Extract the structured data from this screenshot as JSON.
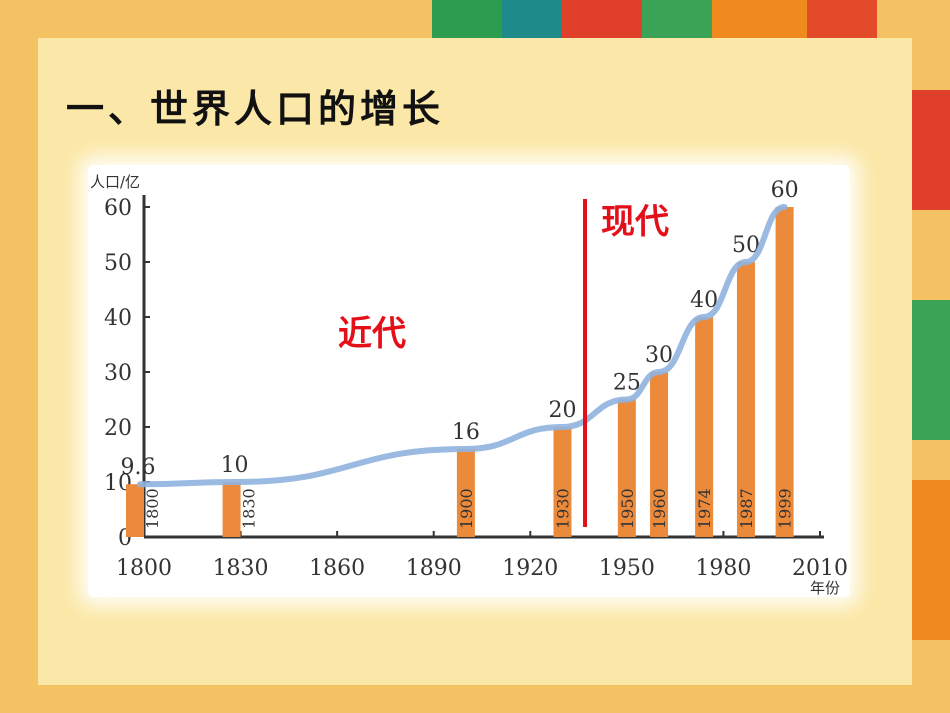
{
  "slide": {
    "title": "一、世界人口的增长"
  },
  "colors": {
    "bar": "#ec8a3c",
    "curve": "#8fb3df",
    "era_divider": "#e3101a",
    "era_text": "#e3101a"
  },
  "chart_data": {
    "type": "bar",
    "ylabel": "人口/亿",
    "xlabel": "年份",
    "xlim": [
      1800,
      2010
    ],
    "ylim": [
      0,
      60
    ],
    "x_ticks": [
      1800,
      1830,
      1860,
      1890,
      1920,
      1950,
      1980,
      2010
    ],
    "y_ticks": [
      0,
      10,
      20,
      30,
      40,
      50,
      60
    ],
    "bars": [
      {
        "year": 1800,
        "value": 9.6,
        "value_label": "9.6",
        "year_label": "1800"
      },
      {
        "year": 1830,
        "value": 10,
        "value_label": "10",
        "year_label": "1830"
      },
      {
        "year": 1900,
        "value": 16,
        "value_label": "16",
        "year_label": "1900"
      },
      {
        "year": 1930,
        "value": 20,
        "value_label": "20",
        "year_label": "1930"
      },
      {
        "year": 1950,
        "value": 25,
        "value_label": "25",
        "year_label": "1950"
      },
      {
        "year": 1960,
        "value": 30,
        "value_label": "30",
        "year_label": "1960"
      },
      {
        "year": 1974,
        "value": 40,
        "value_label": "40",
        "year_label": "1974"
      },
      {
        "year": 1987,
        "value": 50,
        "value_label": "50",
        "year_label": "1987"
      },
      {
        "year": 1999,
        "value": 60,
        "value_label": "60",
        "year_label": "1999"
      }
    ],
    "trend_curve": true,
    "era_divider_year": 1937,
    "eras": [
      {
        "label": "近代",
        "side": "before"
      },
      {
        "label": "现代",
        "side": "after"
      }
    ],
    "grid": false
  }
}
